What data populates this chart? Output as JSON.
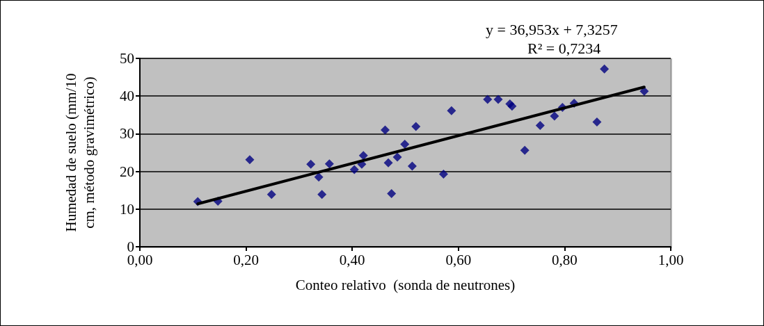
{
  "chart_data": {
    "type": "scatter",
    "xlabel": "Conteo relativo  (sonda de neutrones)",
    "ylabel": "Humedad de suelo (mm/10\ncm, método gravimétrico)",
    "annotations": [
      "y = 36,953x + 7,3257",
      "R² = 0,7234"
    ],
    "xlim": [
      0,
      1
    ],
    "xticks": [
      {
        "value": 0,
        "label": "0,00"
      },
      {
        "value": 0.2,
        "label": "0,20"
      },
      {
        "value": 0.4,
        "label": "0,40"
      },
      {
        "value": 0.6,
        "label": "0,60"
      },
      {
        "value": 0.8,
        "label": "0,80"
      },
      {
        "value": 1,
        "label": "1,00"
      }
    ],
    "ylim": [
      0,
      50
    ],
    "yticks": [
      0,
      10,
      20,
      30,
      40,
      50
    ],
    "grid": "y",
    "series": [
      {
        "color": "#000080",
        "marker": "diamond",
        "x": [
          0.109,
          0.147,
          0.207,
          0.248,
          0.322,
          0.337,
          0.343,
          0.357,
          0.404,
          0.418,
          0.421,
          0.462,
          0.468,
          0.474,
          0.485,
          0.499,
          0.513,
          0.52,
          0.572,
          0.587,
          0.655,
          0.675,
          0.697,
          0.701,
          0.725,
          0.754,
          0.781,
          0.796,
          0.818,
          0.861,
          0.875,
          0.95
        ],
        "values": [
          12.0,
          12.1,
          23.1,
          13.9,
          21.9,
          18.5,
          13.9,
          22.0,
          20.5,
          21.9,
          24.2,
          31.0,
          22.3,
          14.1,
          23.8,
          27.2,
          21.4,
          31.9,
          19.3,
          36.1,
          39.1,
          39.1,
          37.9,
          37.3,
          25.6,
          32.2,
          34.7,
          37.0,
          38.1,
          33.1,
          47.2,
          41.3
        ]
      },
      {
        "type": "line",
        "marker": "none",
        "color": "#000000",
        "x": [
          0.109,
          0.95
        ],
        "values": [
          11.4,
          42.4
        ]
      }
    ]
  }
}
